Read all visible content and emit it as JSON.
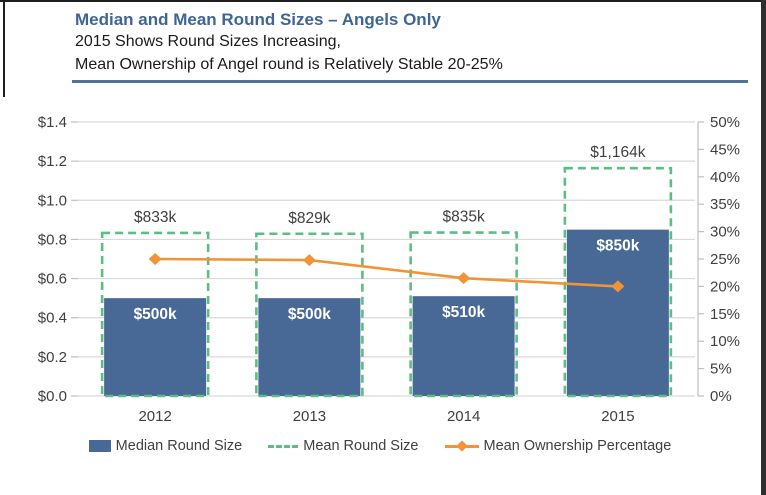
{
  "header": {
    "title": "Median and Mean Round Sizes – Angels Only",
    "subtitle_line1": "2015 Shows Round Sizes Increasing,",
    "subtitle_line2": "Mean Ownership of Angel round is Relatively Stable 20-25%",
    "title_color": "#3e6596",
    "rule_color": "#4f7396"
  },
  "chart_data": {
    "type": "combo",
    "categories": [
      "2012",
      "2013",
      "2014",
      "2015"
    ],
    "series": [
      {
        "name": "Median Round Size",
        "type": "bar",
        "axis": "left",
        "values": [
          0.5,
          0.5,
          0.51,
          0.85
        ],
        "labels": [
          "$500k",
          "$500k",
          "$510k",
          "$850k"
        ],
        "color": "#486996"
      },
      {
        "name": "Mean Round Size",
        "type": "dashed-outline-bar",
        "axis": "left",
        "values": [
          0.833,
          0.829,
          0.835,
          1.164
        ],
        "labels": [
          "$833k",
          "$829k",
          "$835k",
          "$1,164k"
        ],
        "color": "#5ebd82"
      },
      {
        "name": "Mean Ownership Percentage",
        "type": "line",
        "axis": "right",
        "values": [
          25,
          24.8,
          21.5,
          20
        ],
        "color": "#f09437"
      }
    ],
    "left_axis": {
      "min": 0,
      "max": 1.4,
      "step": 0.2,
      "tick_labels": [
        "$1.4",
        "$1.2",
        "$1.0",
        "$0.8",
        "$0.6",
        "$0.4",
        "$0.2",
        "$0.0"
      ]
    },
    "right_axis": {
      "min": 0,
      "max": 50,
      "step": 5,
      "tick_labels": [
        "50%",
        "45%",
        "40%",
        "35%",
        "30%",
        "25%",
        "20%",
        "15%",
        "10%",
        "5%",
        "0%"
      ]
    },
    "grid": true,
    "legend_position": "bottom",
    "gridline_color": "#d9d9d9",
    "axis_line_color": "#bfbfbf",
    "axis_text_color": "#404040",
    "bar_label_color": "#ffffff"
  },
  "legend": {
    "items": [
      {
        "label": "Median Round Size"
      },
      {
        "label": "Mean Round Size"
      },
      {
        "label": "Mean Ownership Percentage"
      }
    ]
  }
}
